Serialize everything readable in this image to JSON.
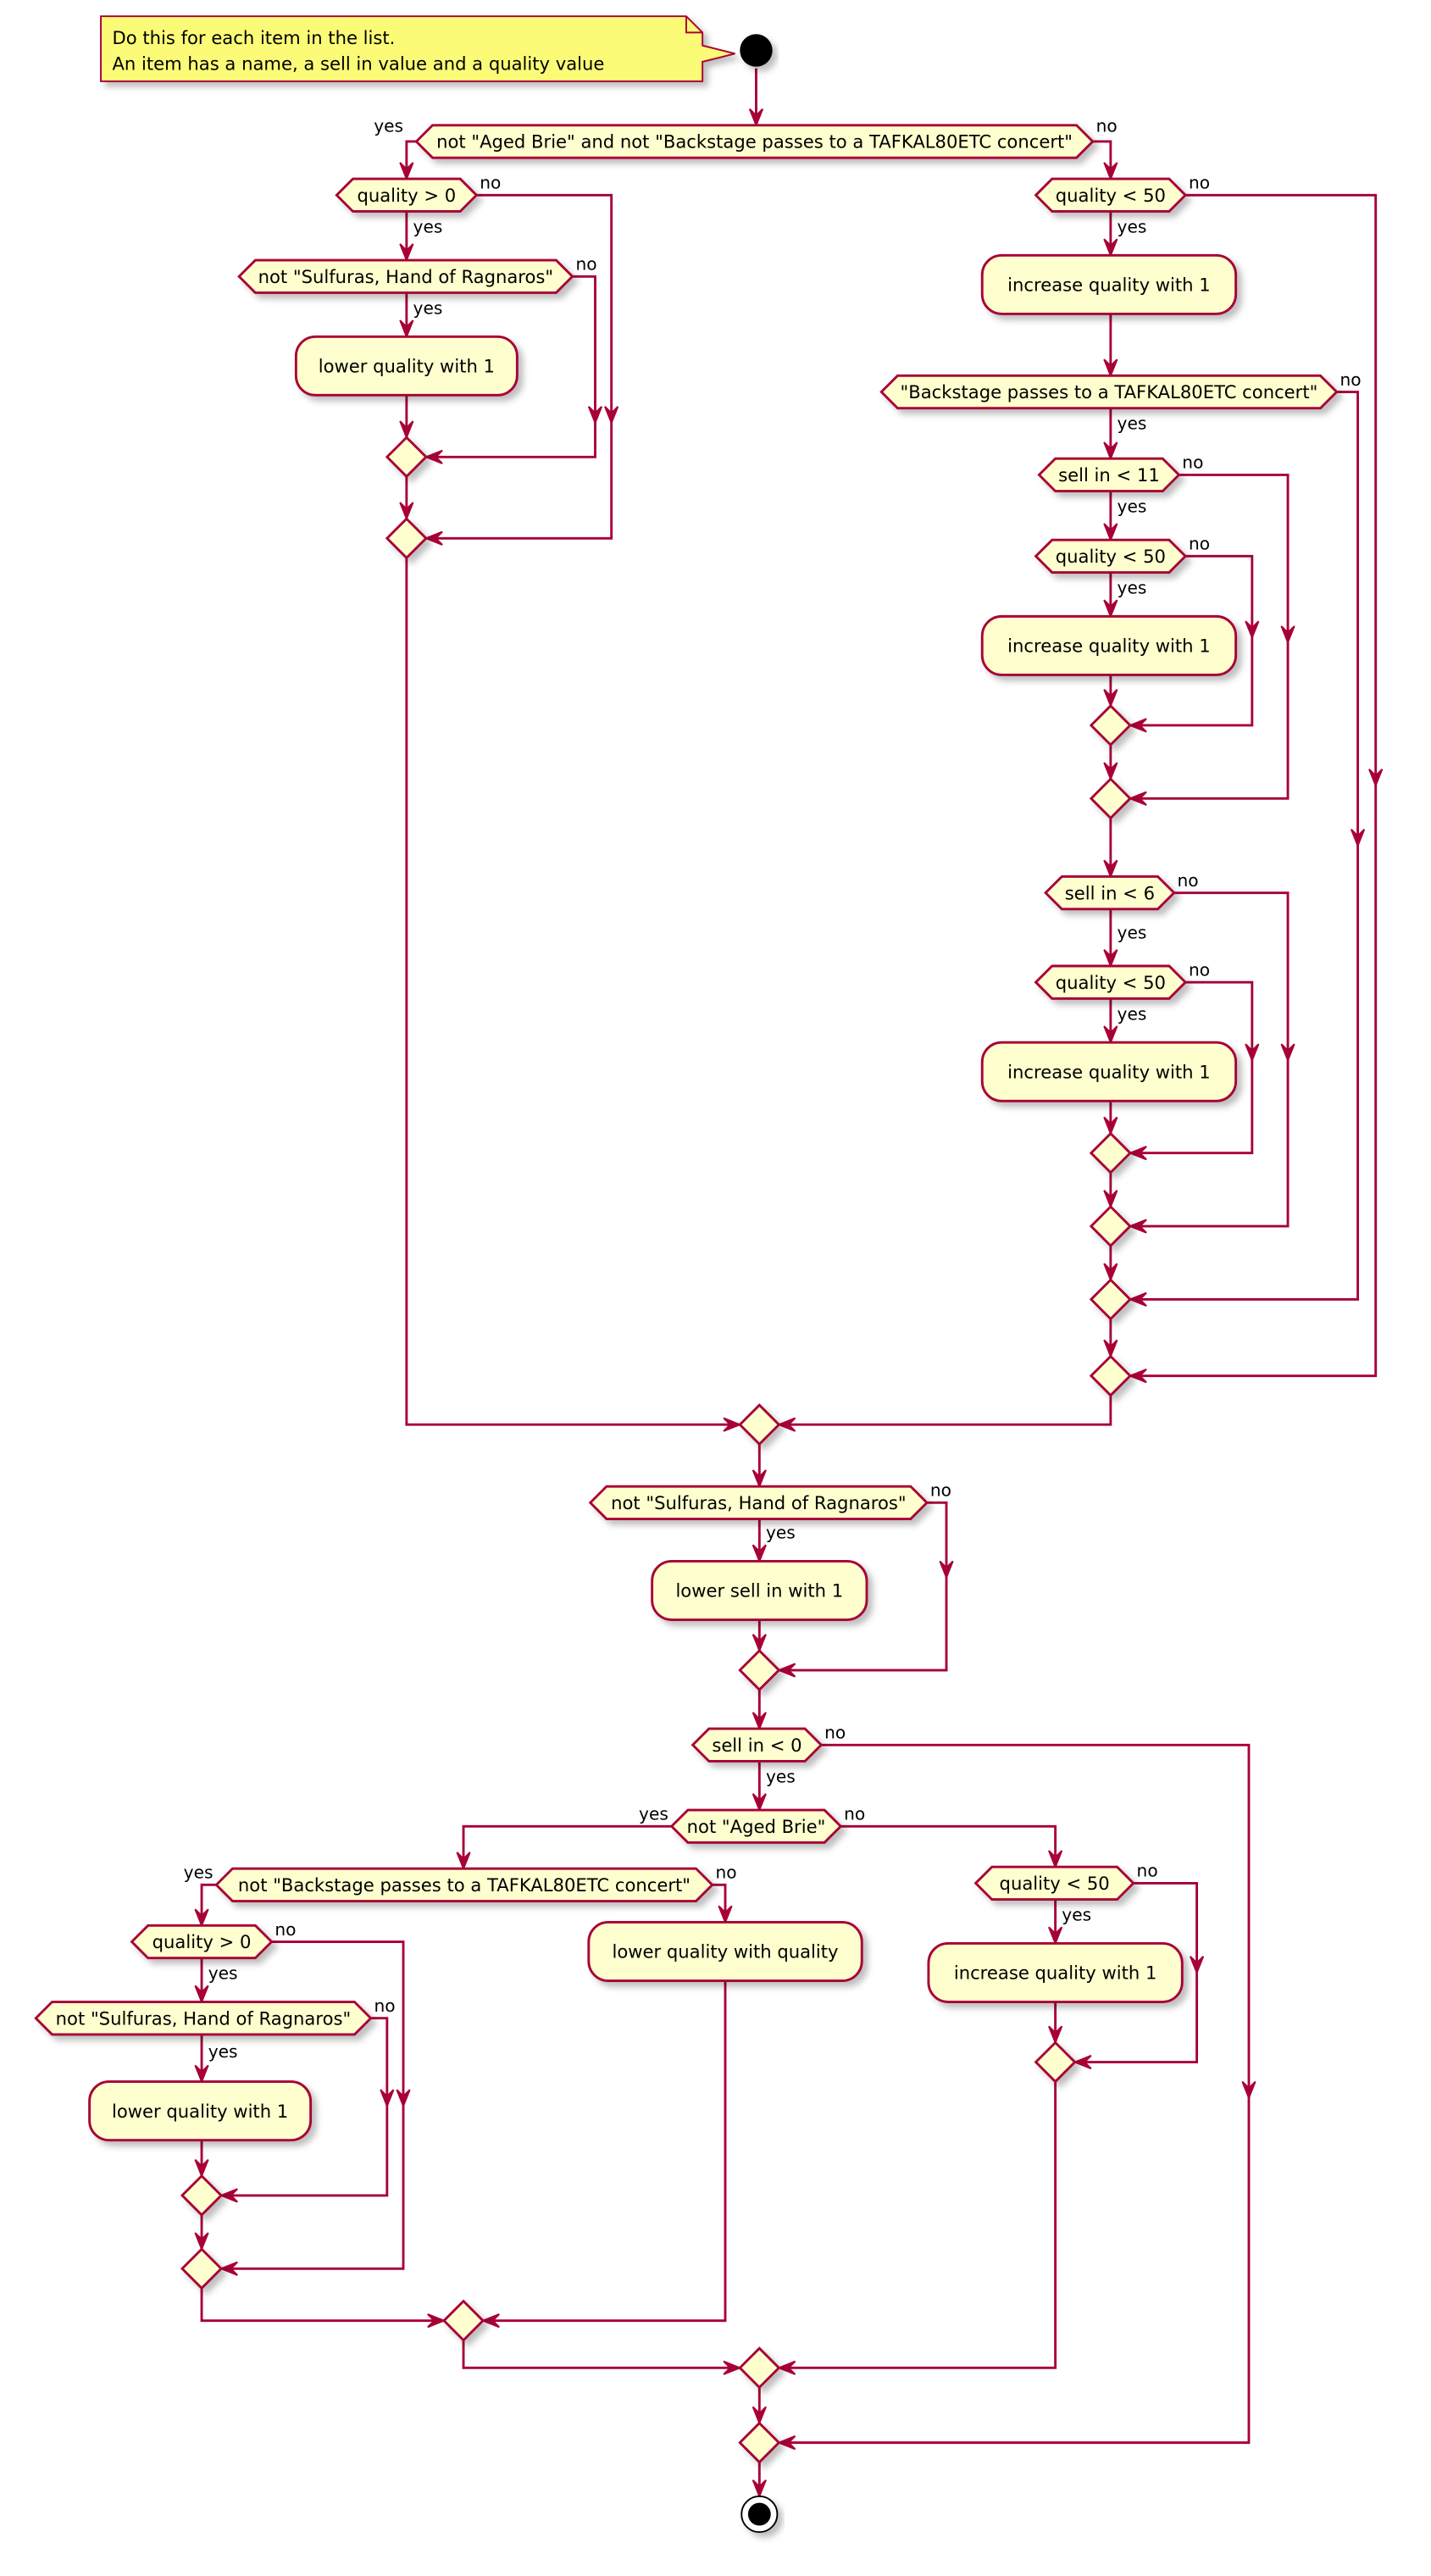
{
  "note": {
    "lines": [
      "Do this for each item in the list.",
      "An item has a name, a sell in value and a quality value"
    ]
  },
  "labels": {
    "yes": "yes",
    "no": "no"
  },
  "decisions": [
    "not \"Aged Brie\" and not \"Backstage passes to a TAFKAL80ETC concert\"",
    "quality > 0",
    "not \"Sulfuras, Hand of Ragnaros\"",
    "quality < 50",
    "\"Backstage passes to a TAFKAL80ETC concert\"",
    "sell in < 11",
    "quality < 50",
    "sell in < 6",
    "quality < 50",
    "not \"Sulfuras, Hand of Ragnaros\"",
    "sell in < 0",
    "not \"Aged Brie\"",
    "not \"Backstage passes to a TAFKAL80ETC concert\"",
    "quality > 0",
    "not \"Sulfuras, Hand of Ragnaros\"",
    "quality < 50"
  ],
  "actions": [
    "lower quality with 1",
    "increase quality with 1",
    "increase quality with 1",
    "increase quality with 1",
    "lower sell in with 1",
    "lower quality with 1",
    "lower quality with quality",
    "increase quality with 1"
  ],
  "colors": {
    "line": "#A80036",
    "fill": "#FEFECE",
    "note_fill": "#FBFB77",
    "node": "#000000"
  }
}
